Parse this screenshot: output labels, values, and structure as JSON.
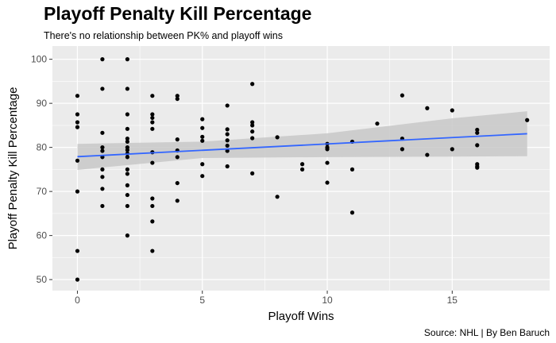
{
  "chart_data": {
    "type": "scatter",
    "title": "Playoff Penalty Kill Percentage",
    "subtitle": "There's no relationship between PK% and playoff wins",
    "caption": "Source: NHL | By Ben Baruch",
    "xlabel": "Playoff Wins",
    "ylabel": "Playoff Penalty Kill Percentage",
    "xlim": [
      -1,
      18.9
    ],
    "ylim": [
      47.5,
      103
    ],
    "x_ticks": [
      0,
      5,
      10,
      15
    ],
    "x_tick_labels": [
      "0",
      "5",
      "10",
      "15"
    ],
    "y_ticks": [
      50,
      60,
      70,
      80,
      90,
      100
    ],
    "y_tick_labels": [
      "50",
      "60",
      "70",
      "80",
      "90",
      "100"
    ],
    "grid": true,
    "points": [
      [
        0,
        91.7
      ],
      [
        0,
        87.5
      ],
      [
        0,
        85.7
      ],
      [
        0,
        84.6
      ],
      [
        0,
        77
      ],
      [
        0,
        70
      ],
      [
        0,
        56.5
      ],
      [
        0,
        50
      ],
      [
        1,
        100
      ],
      [
        1,
        93.3
      ],
      [
        1,
        83.3
      ],
      [
        1,
        80
      ],
      [
        1,
        79.2
      ],
      [
        1,
        77.8
      ],
      [
        1,
        75
      ],
      [
        1,
        73.3
      ],
      [
        1,
        70.6
      ],
      [
        1,
        66.7
      ],
      [
        2,
        100
      ],
      [
        2,
        93.3
      ],
      [
        2,
        87.5
      ],
      [
        2,
        84.2
      ],
      [
        2,
        82
      ],
      [
        2,
        81.3
      ],
      [
        2,
        80
      ],
      [
        2,
        79.4
      ],
      [
        2,
        78.6
      ],
      [
        2,
        77.8
      ],
      [
        2,
        75
      ],
      [
        2,
        74
      ],
      [
        2,
        71.4
      ],
      [
        2,
        69.2
      ],
      [
        2,
        66.7
      ],
      [
        2,
        60
      ],
      [
        3,
        91.7
      ],
      [
        3,
        87.5
      ],
      [
        3,
        86.7
      ],
      [
        3,
        85.7
      ],
      [
        3,
        84.2
      ],
      [
        3,
        78.9
      ],
      [
        3,
        76.5
      ],
      [
        3,
        68.4
      ],
      [
        3,
        66.7
      ],
      [
        3,
        63.2
      ],
      [
        3,
        56.5
      ],
      [
        4,
        91.7
      ],
      [
        4,
        91
      ],
      [
        4,
        81.8
      ],
      [
        4,
        79.3
      ],
      [
        4,
        77.8
      ],
      [
        4,
        71.9
      ],
      [
        4,
        67.9
      ],
      [
        5,
        86.4
      ],
      [
        5,
        84.4
      ],
      [
        5,
        82.4
      ],
      [
        5,
        81.5
      ],
      [
        5,
        76.2
      ],
      [
        5,
        73.5
      ],
      [
        6,
        89.5
      ],
      [
        6,
        84.1
      ],
      [
        6,
        83
      ],
      [
        6,
        81.6
      ],
      [
        6,
        80.4
      ],
      [
        6,
        79.2
      ],
      [
        6,
        75.7
      ],
      [
        7,
        94.4
      ],
      [
        7,
        85.7
      ],
      [
        7,
        85
      ],
      [
        7,
        83.6
      ],
      [
        7,
        82.1
      ],
      [
        7,
        74.1
      ],
      [
        8,
        82.3
      ],
      [
        8,
        68.8
      ],
      [
        9,
        76.2
      ],
      [
        9,
        75
      ],
      [
        10,
        80.8
      ],
      [
        10,
        80
      ],
      [
        10,
        79.6
      ],
      [
        10,
        76.5
      ],
      [
        10,
        72
      ],
      [
        11,
        81.3
      ],
      [
        11,
        75
      ],
      [
        11,
        65.2
      ],
      [
        12,
        85.4
      ],
      [
        13,
        91.8
      ],
      [
        13,
        82
      ],
      [
        13,
        79.6
      ],
      [
        14,
        88.9
      ],
      [
        14,
        78.3
      ],
      [
        15,
        88.4
      ],
      [
        15,
        79.6
      ],
      [
        16,
        84
      ],
      [
        16,
        83.3
      ],
      [
        16,
        80.5
      ],
      [
        16,
        76.2
      ],
      [
        16,
        75.7
      ],
      [
        16,
        75.4
      ],
      [
        18,
        86.2
      ]
    ],
    "trend_line": {
      "type": "linear",
      "x": [
        0,
        18
      ],
      "y": [
        77.9,
        83.1
      ],
      "color": "#3366ff"
    },
    "confidence_band": {
      "x": [
        0,
        5,
        10,
        15,
        18
      ],
      "lower": [
        74.9,
        77.6,
        77.8,
        77.9,
        78.0
      ],
      "upper": [
        80.8,
        81.3,
        83.2,
        86.6,
        88.2
      ],
      "color": "#c8c8c8"
    },
    "colors": {
      "panel": "#ebebeb",
      "grid": "#ffffff",
      "points": "#000000",
      "trend": "#3366ff",
      "band": "#c8c8c8"
    }
  }
}
